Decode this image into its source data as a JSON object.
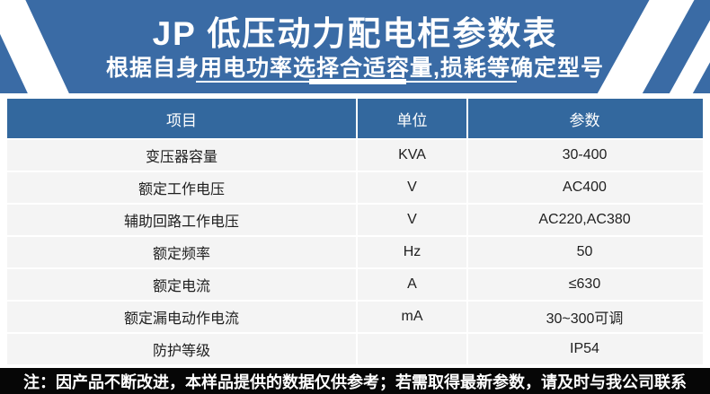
{
  "banner": {
    "title": "JP 低压动力配电柜参数表",
    "subtitle": "根据自身用电功率选择合适容量,损耗等确定型号",
    "bg_color": "#3a6ba5",
    "text_color": "#ffffff"
  },
  "table": {
    "headers": [
      "项目",
      "单位",
      "参数"
    ],
    "rows": [
      {
        "item": "变压器容量",
        "unit": "KVA",
        "value": "30-400"
      },
      {
        "item": "额定工作电压",
        "unit": "V",
        "value": "AC400"
      },
      {
        "item": "辅助回路工作电压",
        "unit": "V",
        "value": "AC220,AC380"
      },
      {
        "item": "额定频率",
        "unit": "Hz",
        "value": "50"
      },
      {
        "item": "额定电流",
        "unit": "A",
        "value": "≤630"
      },
      {
        "item": "额定漏电动作电流",
        "unit": "mA",
        "value": "30~300可调"
      },
      {
        "item": "防护等级",
        "unit": "",
        "value": "IP54"
      }
    ],
    "header_bg": "#33689e",
    "row_bg": "#f4f4f4"
  },
  "footer": {
    "note": "注：因产品不断改进，本样品提供的数据仅供参考；若需取得最新参数，请及时与我公司联系",
    "bg_color": "#060606",
    "text_color": "#ffffff"
  }
}
